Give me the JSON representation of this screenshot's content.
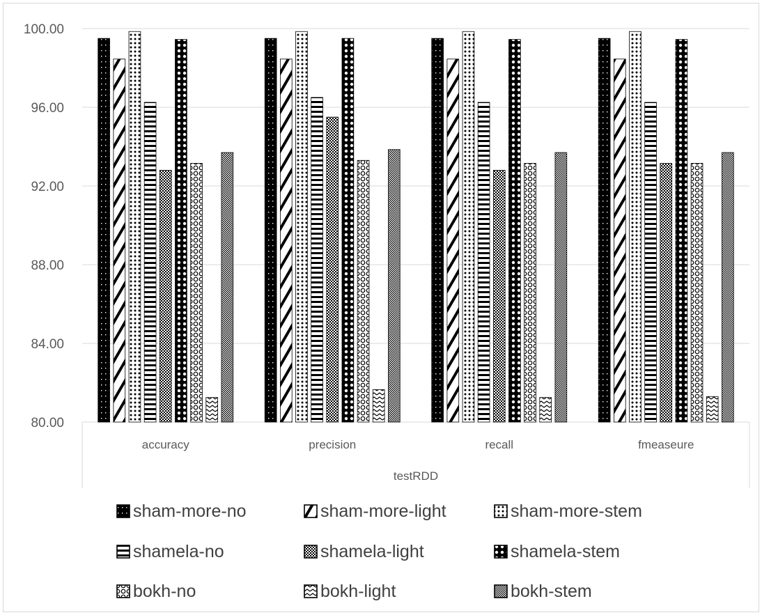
{
  "chart_data": {
    "type": "bar",
    "title": "",
    "ylabel": "",
    "xlabel": "testRDD",
    "ylim": [
      80,
      100
    ],
    "yticks": [
      "80.00",
      "84.00",
      "88.00",
      "92.00",
      "96.00",
      "100.00"
    ],
    "grid": true,
    "legend_position": "bottom",
    "categories": [
      "accuracy",
      "precision",
      "recall",
      "fmeaseure"
    ],
    "series": [
      {
        "name": "sham-more-no",
        "pattern": "dots-on-black",
        "values": [
          99.5,
          99.5,
          99.5,
          99.5
        ]
      },
      {
        "name": "sham-more-light",
        "pattern": "wide-diagonal",
        "values": [
          98.45,
          98.45,
          98.45,
          98.45
        ]
      },
      {
        "name": "sham-more-stem",
        "pattern": "dotted-grid",
        "values": [
          99.85,
          99.85,
          99.85,
          99.85
        ]
      },
      {
        "name": "shamela-no",
        "pattern": "horizontal-lines",
        "values": [
          96.25,
          96.5,
          96.25,
          96.25
        ]
      },
      {
        "name": "shamela-light",
        "pattern": "small-checker",
        "values": [
          92.8,
          95.5,
          92.8,
          93.15
        ]
      },
      {
        "name": "shamela-stem",
        "pattern": "black-circles",
        "values": [
          99.45,
          99.5,
          99.45,
          99.45
        ]
      },
      {
        "name": "bokh-no",
        "pattern": "sphere-grid",
        "values": [
          93.15,
          93.3,
          93.15,
          93.15
        ]
      },
      {
        "name": "bokh-light",
        "pattern": "zigzag",
        "values": [
          81.25,
          81.65,
          81.25,
          81.3
        ]
      },
      {
        "name": "bokh-stem",
        "pattern": "fine-checker",
        "values": [
          93.7,
          93.85,
          93.7,
          93.7
        ]
      }
    ]
  },
  "colors": {
    "bar_fill": "#000000",
    "gridline": "#d9d9d9",
    "axis_text": "#595959",
    "legend_text": "#404040"
  }
}
